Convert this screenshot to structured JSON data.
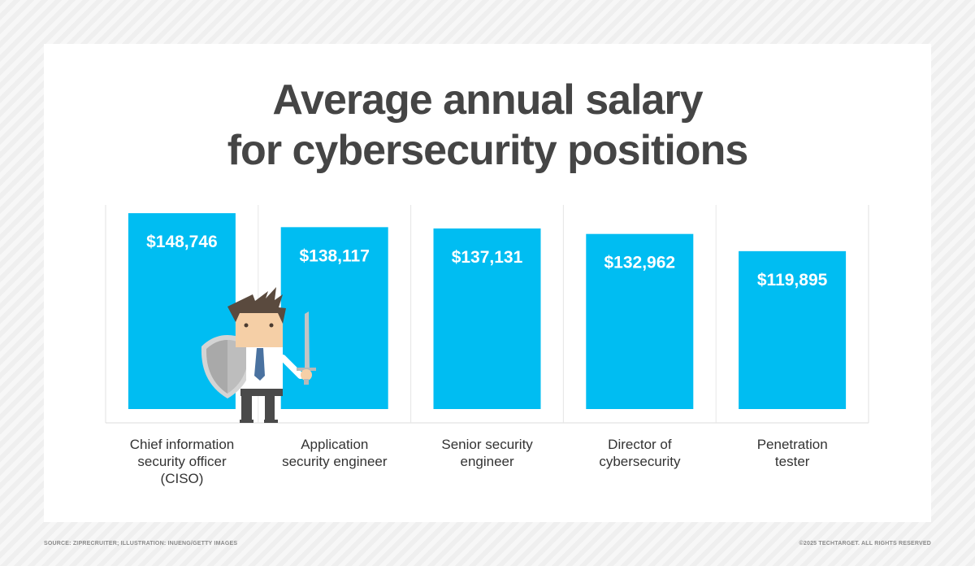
{
  "chart_data": {
    "type": "bar",
    "title_lines": [
      "Average annual salary",
      "for cybersecurity positions"
    ],
    "categories": [
      [
        "Chief information",
        "security officer",
        "(CISO)"
      ],
      [
        "Application",
        "security engineer"
      ],
      [
        "Senior security",
        "engineer"
      ],
      [
        "Director of",
        "cybersecurity"
      ],
      [
        "Penetration",
        "tester"
      ]
    ],
    "values": [
      148746,
      138117,
      137131,
      132962,
      119895
    ],
    "data_labels": [
      "$148,746",
      "$138,117",
      "$137,131",
      "$132,962",
      "$119,895"
    ],
    "ylim": [
      0,
      155000
    ],
    "grid": false,
    "bar_color": "#00bdf2",
    "label_color": "#ffffff"
  },
  "footer": {
    "source": "SOURCE: ZIPRECRUITER; ILLUSTRATION: INUENG/GETTY IMAGES",
    "copyright": "©2025 TECHTARGET. ALL RIGHTS RESERVED"
  },
  "illustration": {
    "subject": "businessman-with-shield-and-sword-icon"
  }
}
